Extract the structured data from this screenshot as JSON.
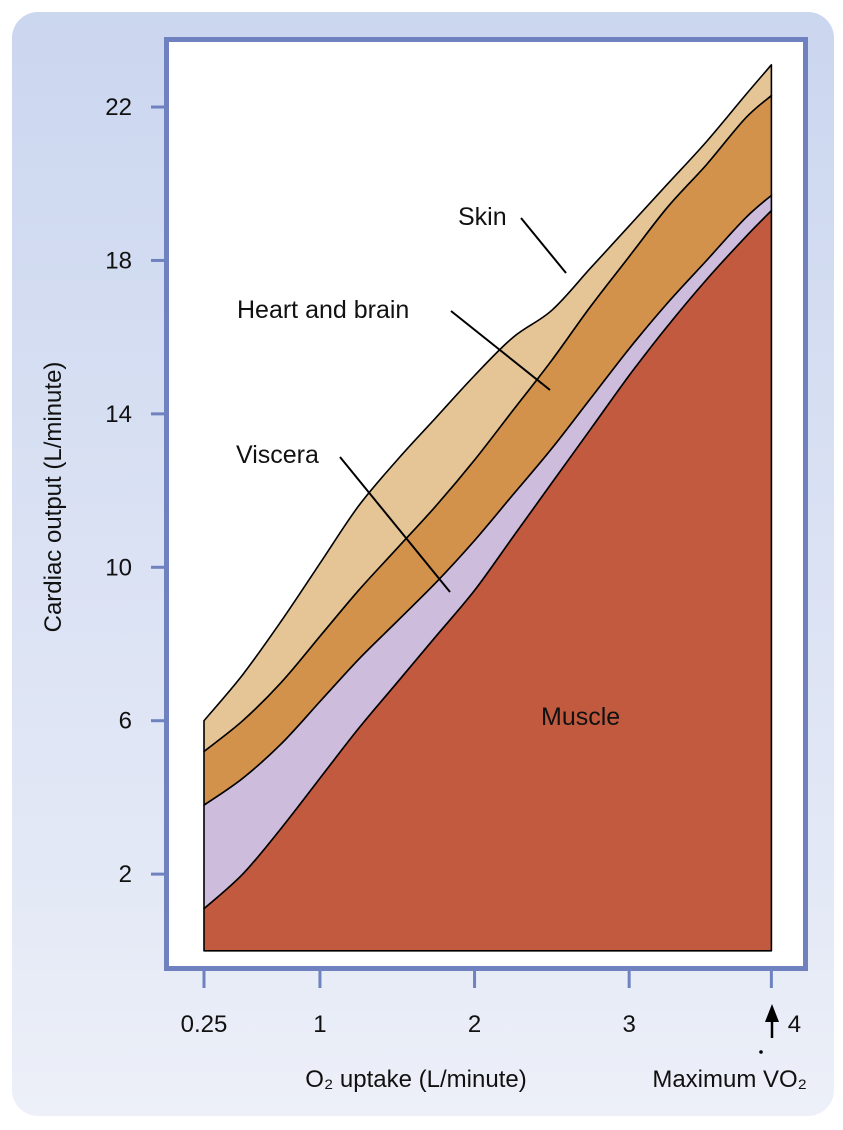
{
  "chart_data": {
    "type": "area",
    "stacked": true,
    "xlabel": "O₂ uptake (L/minute)",
    "ylabel": "Cardiac output (L/minute)",
    "xlim": [
      0.25,
      4.2
    ],
    "ylim": [
      -0.5,
      23.8
    ],
    "x_ticks": [
      {
        "value": 0.25,
        "label": "0.25"
      },
      {
        "value": 1,
        "label": "1"
      },
      {
        "value": 2,
        "label": "2"
      },
      {
        "value": 3,
        "label": "3"
      },
      {
        "value": 3.92,
        "label": "4"
      }
    ],
    "y_ticks": [
      {
        "value": 2,
        "label": "2"
      },
      {
        "value": 6,
        "label": "6"
      },
      {
        "value": 10,
        "label": "10"
      },
      {
        "value": 14,
        "label": "14"
      },
      {
        "value": 18,
        "label": "18"
      },
      {
        "value": 22,
        "label": "22"
      }
    ],
    "grid": false,
    "x": [
      0.25,
      0.5,
      0.75,
      1.0,
      1.25,
      1.5,
      1.75,
      2.0,
      2.25,
      2.5,
      2.75,
      3.0,
      3.25,
      3.5,
      3.75,
      3.92
    ],
    "series": [
      {
        "name": "Muscle",
        "color": "#c25a40",
        "values": [
          1.1,
          2.0,
          3.2,
          4.5,
          5.8,
          7.0,
          8.2,
          9.4,
          10.8,
          12.2,
          13.6,
          15.0,
          16.3,
          17.5,
          18.6,
          19.3
        ]
      },
      {
        "name": "Viscera",
        "color": "#cdbcdc",
        "values": [
          2.7,
          2.5,
          2.2,
          2.0,
          1.8,
          1.6,
          1.4,
          1.3,
          1.1,
          0.9,
          0.8,
          0.7,
          0.6,
          0.5,
          0.5,
          0.4
        ]
      },
      {
        "name": "Heart and brain",
        "color": "#d3924b",
        "values": [
          1.4,
          1.5,
          1.6,
          1.7,
          1.8,
          1.9,
          2.0,
          2.1,
          2.2,
          2.3,
          2.4,
          2.4,
          2.5,
          2.5,
          2.6,
          2.6
        ]
      },
      {
        "name": "Skin",
        "color": "#e5c496",
        "values": [
          0.8,
          1.2,
          1.6,
          1.9,
          2.2,
          2.3,
          2.3,
          2.2,
          1.9,
          1.3,
          1.0,
          0.8,
          0.6,
          0.6,
          0.6,
          0.8
        ]
      }
    ],
    "annotations": {
      "max_vo2": {
        "x": 3.92,
        "label_pre": "Maximum ",
        "label_v": "V",
        "label_post": "O₂"
      }
    }
  }
}
